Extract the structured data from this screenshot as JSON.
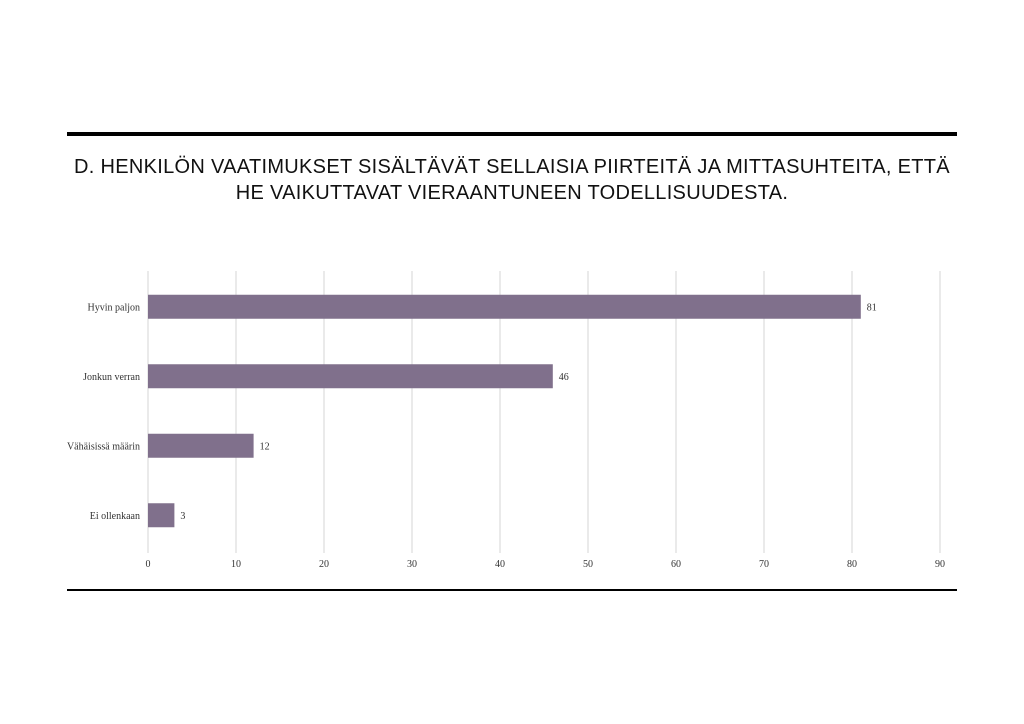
{
  "chart_data": {
    "type": "bar",
    "orientation": "horizontal",
    "title": "D. HENKILÖN VAATIMUKSET SISÄLTÄVÄT SELLAISIA PIIRTEITÄ JA MITTASUHTEITA, ETTÄ HE VAIKUTTAVAT VIERAANTUNEEN TODELLISUUDESTA.",
    "categories": [
      "Hyvin paljon",
      "Jonkun verran",
      "Vähäisissä määrin",
      "Ei ollenkaan"
    ],
    "values": [
      81,
      46,
      12,
      3
    ],
    "xlim": [
      0,
      90
    ],
    "xticks": [
      0,
      10,
      20,
      30,
      40,
      50,
      60,
      70,
      80,
      90
    ],
    "grid": "vertical",
    "bar_color": "#80708c",
    "data_labels": true
  }
}
